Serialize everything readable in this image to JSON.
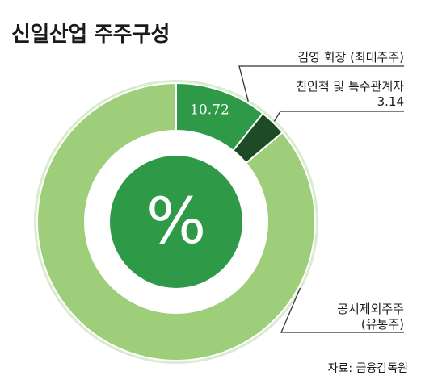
{
  "title": "신일산업 주주구성",
  "source": "자료: 금융감독원",
  "center_symbol": "%",
  "colors": {
    "kim": "#2e9a48",
    "relatives": "#1f4a26",
    "public": "#9fce7b",
    "inner_disc": "#2e9a48",
    "ring_halo": "#d9ecd0"
  },
  "chart_data": {
    "type": "pie",
    "donut": true,
    "title": "신일산업 주주구성",
    "slices": [
      {
        "key": "kim",
        "label_lines": [
          "김영 회장 (최대주주)"
        ],
        "value": 10.72,
        "value_label": "10.72"
      },
      {
        "key": "relatives",
        "label_lines": [
          "친인척 및 특수관계자",
          "3.14"
        ],
        "value": 3.14,
        "value_label": ""
      },
      {
        "key": "public",
        "label_lines": [
          "공시제외주주",
          "(유통주)"
        ],
        "value": 86.14,
        "value_label": ""
      }
    ]
  }
}
